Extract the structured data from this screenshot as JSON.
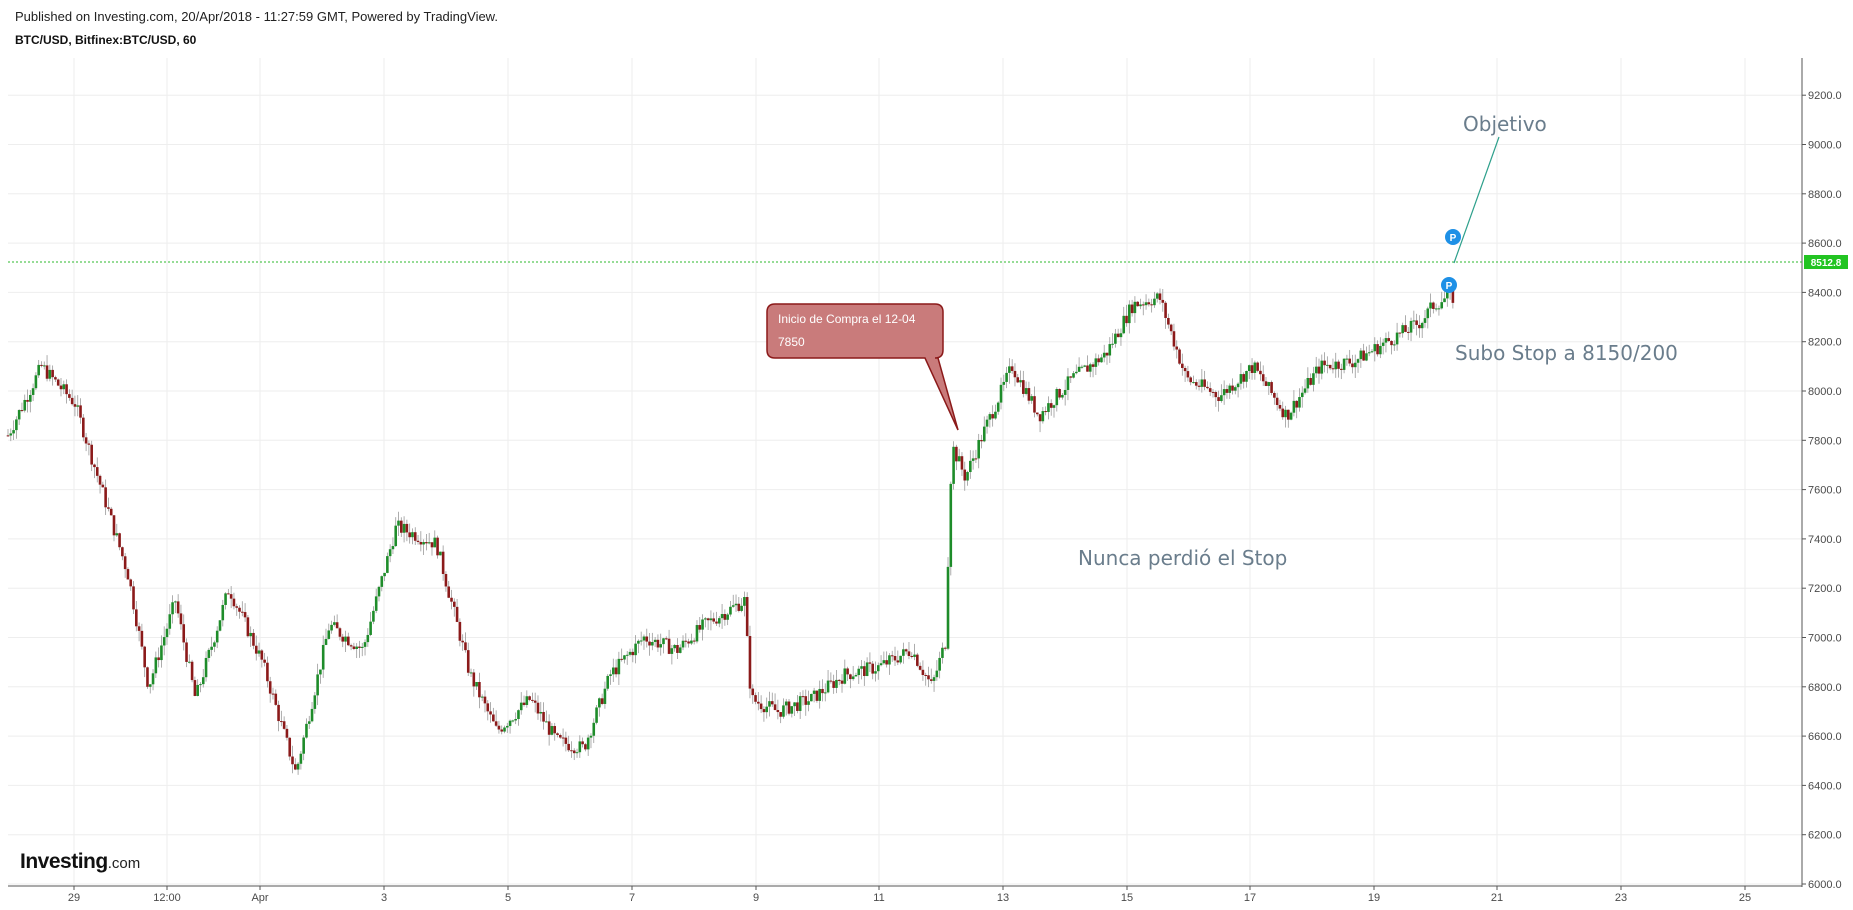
{
  "header": {
    "published": "Published on Investing.com, 20/Apr/2018 - 11:27:59 GMT, Powered by TradingView.",
    "symbol": "BTC/USD, Bitfinex:BTC/USD, 60"
  },
  "logo": {
    "brand": "Investing",
    "suffix": ".com"
  },
  "colors": {
    "up": "#1e8c2a",
    "down": "#8b1a1a",
    "grid": "#eeeeee",
    "axis": "#555555",
    "price_line": "#2db92d",
    "callout_fill": "#c97b7b",
    "callout_border": "#8b1a1a",
    "annotation_text": "#6a7d8c",
    "marker": "#1e90e6",
    "trend_line": "#2ea08c"
  },
  "chart_data": {
    "type": "candlestick",
    "title": "BTC/USD, Bitfinex:BTC/USD, 60",
    "ylim": [
      6000,
      9300
    ],
    "y_ticks": [
      "9200.0",
      "9000.0",
      "8800.0",
      "8600.0",
      "8400.0",
      "8200.0",
      "8000.0",
      "7800.0",
      "7600.0",
      "7400.0",
      "7200.0",
      "7000.0",
      "6800.0",
      "6600.0",
      "6400.0",
      "6200.0",
      "6000.0"
    ],
    "x_ticks": [
      "29",
      "12:00",
      "Apr",
      "3",
      "5",
      "7",
      "9",
      "11",
      "13",
      "15",
      "17",
      "19",
      "21",
      "23",
      "25"
    ],
    "grid": true,
    "last_price": 8512.8,
    "last_price_label": "8512.8",
    "close_path": [
      {
        "t": 0.0,
        "c": 7820
      },
      {
        "t": 0.5,
        "c": 8100
      },
      {
        "t": 1.0,
        "c": 7950
      },
      {
        "t": 1.4,
        "c": 7600
      },
      {
        "t": 1.8,
        "c": 7250
      },
      {
        "t": 2.1,
        "c": 6800
      },
      {
        "t": 2.5,
        "c": 7150
      },
      {
        "t": 2.8,
        "c": 6750
      },
      {
        "t": 3.3,
        "c": 7200
      },
      {
        "t": 3.8,
        "c": 6900
      },
      {
        "t": 4.3,
        "c": 6450
      },
      {
        "t": 4.8,
        "c": 7050
      },
      {
        "t": 5.3,
        "c": 6950
      },
      {
        "t": 5.8,
        "c": 7450
      },
      {
        "t": 6.4,
        "c": 7380
      },
      {
        "t": 6.9,
        "c": 6850
      },
      {
        "t": 7.3,
        "c": 6620
      },
      {
        "t": 7.8,
        "c": 6750
      },
      {
        "t": 8.2,
        "c": 6580
      },
      {
        "t": 8.6,
        "c": 6550
      },
      {
        "t": 9.0,
        "c": 6850
      },
      {
        "t": 9.5,
        "c": 7000
      },
      {
        "t": 10.0,
        "c": 6950
      },
      {
        "t": 10.4,
        "c": 7050
      },
      {
        "t": 11.0,
        "c": 7150
      },
      {
        "t": 11.1,
        "c": 6750
      },
      {
        "t": 11.5,
        "c": 6700
      },
      {
        "t": 12.0,
        "c": 6750
      },
      {
        "t": 12.5,
        "c": 6850
      },
      {
        "t": 13.0,
        "c": 6880
      },
      {
        "t": 13.5,
        "c": 6950
      },
      {
        "t": 13.8,
        "c": 6800
      },
      {
        "t": 14.0,
        "c": 6980
      },
      {
        "t": 14.1,
        "c": 7780
      },
      {
        "t": 14.3,
        "c": 7650
      },
      {
        "t": 14.6,
        "c": 7850
      },
      {
        "t": 15.0,
        "c": 8100
      },
      {
        "t": 15.4,
        "c": 7900
      },
      {
        "t": 15.9,
        "c": 8050
      },
      {
        "t": 16.4,
        "c": 8150
      },
      {
        "t": 16.8,
        "c": 8350
      },
      {
        "t": 17.2,
        "c": 8380
      },
      {
        "t": 17.6,
        "c": 8050
      },
      {
        "t": 18.1,
        "c": 7980
      },
      {
        "t": 18.6,
        "c": 8100
      },
      {
        "t": 19.1,
        "c": 7900
      },
      {
        "t": 19.6,
        "c": 8100
      },
      {
        "t": 20.1,
        "c": 8120
      },
      {
        "t": 20.6,
        "c": 8200
      },
      {
        "t": 21.1,
        "c": 8280
      },
      {
        "t": 21.3,
        "c": 8350
      },
      {
        "t": 21.5,
        "c": 8380
      }
    ],
    "annotations": {
      "callout_line1": "Inicio de Compra el 12-04",
      "callout_line2": "7850",
      "note_objetivo": "Objetivo",
      "note_stop": "Subo Stop a 8150/200",
      "note_nunca": "Nunca perdió el Stop",
      "marker_label": "P"
    }
  }
}
